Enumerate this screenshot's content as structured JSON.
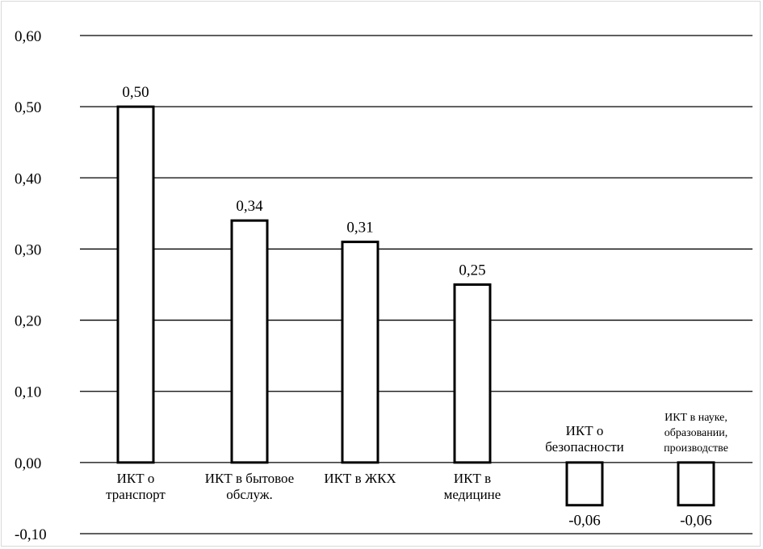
{
  "chart_data": {
    "type": "bar",
    "categories": [
      [
        "ИКТ о",
        "транспорт"
      ],
      [
        "ИКТ в бытовое",
        "обслуж."
      ],
      [
        "ИКТ в ЖКХ"
      ],
      [
        "ИКТ в",
        "медицине"
      ],
      [
        "ИКТ о",
        "безопасности"
      ],
      [
        "ИКТ в науке,",
        "образовании,",
        "производстве"
      ]
    ],
    "values": [
      0.5,
      0.34,
      0.31,
      0.25,
      -0.06,
      -0.06
    ],
    "value_labels": [
      "0,50",
      "0,34",
      "0,31",
      "0,25",
      "-0,06",
      "-0,06"
    ],
    "yticks": [
      0.6,
      0.5,
      0.4,
      0.3,
      0.2,
      0.1,
      0.0,
      -0.1
    ],
    "ytick_labels": [
      "0,60",
      "0,50",
      "0,40",
      "0,30",
      "0,20",
      "0,10",
      "0,00",
      "-0,10"
    ],
    "ylim": [
      -0.1,
      0.6
    ],
    "title": "",
    "xlabel": "",
    "ylabel": "",
    "grid": true,
    "bar_fill": "#ffffff",
    "bar_stroke": "#000000",
    "gridline_color": "#000000"
  }
}
